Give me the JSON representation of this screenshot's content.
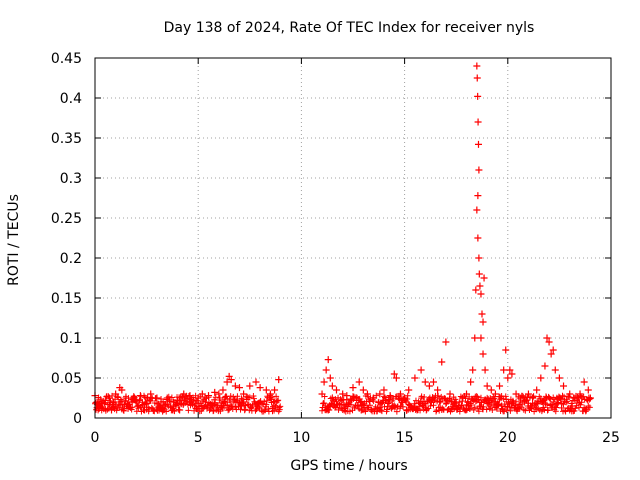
{
  "chart_data": {
    "type": "scatter",
    "title": "Day 138 of 2024, Rate Of TEC Index for receiver nyls",
    "xlabel": "GPS time / hours",
    "ylabel": "ROTI / TECUs",
    "xlim": [
      0,
      25
    ],
    "ylim": [
      0,
      0.45
    ],
    "xticks": [
      0,
      5,
      10,
      15,
      20,
      25
    ],
    "xtick_labels": [
      "0",
      "5",
      "10",
      "15",
      "20",
      "25"
    ],
    "yticks": [
      0,
      0.05,
      0.1,
      0.15,
      0.2,
      0.25,
      0.3,
      0.35,
      0.4,
      0.45
    ],
    "ytick_labels": [
      "0",
      "0.05",
      "0.1",
      "0.15",
      "0.2",
      "0.25",
      "0.3",
      "0.35",
      "0.4",
      "0.45"
    ],
    "grid": true,
    "marker": "+",
    "color": "#ff0000",
    "series": [
      {
        "name": "ROTI",
        "points": [
          [
            0.0,
            0.028
          ],
          [
            0.1,
            0.02
          ],
          [
            0.2,
            0.015
          ],
          [
            0.3,
            0.018
          ],
          [
            0.5,
            0.022
          ],
          [
            0.7,
            0.025
          ],
          [
            0.9,
            0.02
          ],
          [
            1.0,
            0.03
          ],
          [
            1.2,
            0.038
          ],
          [
            1.3,
            0.035
          ],
          [
            1.5,
            0.025
          ],
          [
            1.8,
            0.02
          ],
          [
            2.0,
            0.022
          ],
          [
            2.2,
            0.028
          ],
          [
            2.5,
            0.018
          ],
          [
            2.7,
            0.03
          ],
          [
            3.0,
            0.025
          ],
          [
            3.2,
            0.02
          ],
          [
            3.5,
            0.025
          ],
          [
            3.8,
            0.02
          ],
          [
            4.0,
            0.022
          ],
          [
            4.3,
            0.03
          ],
          [
            4.6,
            0.028
          ],
          [
            5.0,
            0.025
          ],
          [
            5.2,
            0.03
          ],
          [
            5.5,
            0.028
          ],
          [
            5.8,
            0.032
          ],
          [
            6.0,
            0.03
          ],
          [
            6.2,
            0.035
          ],
          [
            6.4,
            0.045
          ],
          [
            6.5,
            0.052
          ],
          [
            6.6,
            0.048
          ],
          [
            6.8,
            0.04
          ],
          [
            7.0,
            0.038
          ],
          [
            7.2,
            0.03
          ],
          [
            7.5,
            0.04
          ],
          [
            7.8,
            0.045
          ],
          [
            8.0,
            0.038
          ],
          [
            8.3,
            0.035
          ],
          [
            8.5,
            0.03
          ],
          [
            8.7,
            0.035
          ],
          [
            8.9,
            0.048
          ],
          [
            0.2,
            0.012
          ],
          [
            0.8,
            0.01
          ],
          [
            1.6,
            0.012
          ],
          [
            2.4,
            0.01
          ],
          [
            3.3,
            0.012
          ],
          [
            4.1,
            0.01
          ],
          [
            4.9,
            0.012
          ],
          [
            5.7,
            0.015
          ],
          [
            6.3,
            0.02
          ],
          [
            7.1,
            0.015
          ],
          [
            7.9,
            0.018
          ],
          [
            8.6,
            0.012
          ],
          [
            11.0,
            0.03
          ],
          [
            11.1,
            0.045
          ],
          [
            11.2,
            0.06
          ],
          [
            11.3,
            0.073
          ],
          [
            11.4,
            0.05
          ],
          [
            11.5,
            0.04
          ],
          [
            11.7,
            0.035
          ],
          [
            12.0,
            0.03
          ],
          [
            12.2,
            0.028
          ],
          [
            12.5,
            0.038
          ],
          [
            12.8,
            0.045
          ],
          [
            13.0,
            0.035
          ],
          [
            13.2,
            0.03
          ],
          [
            13.5,
            0.025
          ],
          [
            13.8,
            0.03
          ],
          [
            14.0,
            0.035
          ],
          [
            14.3,
            0.028
          ],
          [
            14.5,
            0.055
          ],
          [
            14.6,
            0.05
          ],
          [
            14.8,
            0.03
          ],
          [
            15.0,
            0.025
          ],
          [
            15.2,
            0.035
          ],
          [
            15.5,
            0.05
          ],
          [
            15.8,
            0.06
          ],
          [
            16.0,
            0.045
          ],
          [
            16.2,
            0.04
          ],
          [
            16.4,
            0.045
          ],
          [
            16.6,
            0.035
          ],
          [
            16.8,
            0.07
          ],
          [
            17.0,
            0.095
          ],
          [
            17.2,
            0.03
          ],
          [
            17.5,
            0.02
          ],
          [
            17.8,
            0.025
          ],
          [
            18.0,
            0.03
          ],
          [
            18.2,
            0.045
          ],
          [
            18.3,
            0.06
          ],
          [
            18.4,
            0.1
          ],
          [
            18.45,
            0.16
          ],
          [
            18.5,
            0.44
          ],
          [
            18.52,
            0.425
          ],
          [
            18.54,
            0.402
          ],
          [
            18.56,
            0.37
          ],
          [
            18.58,
            0.342
          ],
          [
            18.6,
            0.31
          ],
          [
            18.55,
            0.278
          ],
          [
            18.5,
            0.26
          ],
          [
            18.55,
            0.225
          ],
          [
            18.6,
            0.2
          ],
          [
            18.62,
            0.18
          ],
          [
            18.65,
            0.165
          ],
          [
            18.7,
            0.155
          ],
          [
            18.75,
            0.13
          ],
          [
            18.8,
            0.12
          ],
          [
            18.7,
            0.1
          ],
          [
            18.8,
            0.08
          ],
          [
            18.85,
            0.175
          ],
          [
            18.9,
            0.06
          ],
          [
            19.0,
            0.04
          ],
          [
            19.2,
            0.035
          ],
          [
            19.4,
            0.03
          ],
          [
            19.6,
            0.04
          ],
          [
            19.8,
            0.06
          ],
          [
            19.9,
            0.085
          ],
          [
            20.0,
            0.05
          ],
          [
            20.1,
            0.06
          ],
          [
            20.2,
            0.055
          ],
          [
            20.4,
            0.03
          ],
          [
            20.6,
            0.025
          ],
          [
            20.8,
            0.02
          ],
          [
            21.0,
            0.03
          ],
          [
            21.2,
            0.025
          ],
          [
            21.4,
            0.035
          ],
          [
            21.6,
            0.05
          ],
          [
            21.8,
            0.065
          ],
          [
            21.9,
            0.1
          ],
          [
            22.0,
            0.095
          ],
          [
            22.1,
            0.08
          ],
          [
            22.2,
            0.085
          ],
          [
            22.3,
            0.06
          ],
          [
            22.5,
            0.05
          ],
          [
            22.7,
            0.04
          ],
          [
            23.0,
            0.03
          ],
          [
            23.2,
            0.025
          ],
          [
            23.5,
            0.03
          ],
          [
            23.7,
            0.045
          ],
          [
            23.9,
            0.035
          ],
          [
            24.0,
            0.025
          ],
          [
            11.3,
            0.01
          ],
          [
            12.1,
            0.012
          ],
          [
            12.9,
            0.01
          ],
          [
            13.7,
            0.012
          ],
          [
            14.4,
            0.015
          ],
          [
            15.1,
            0.01
          ],
          [
            15.9,
            0.015
          ],
          [
            16.7,
            0.02
          ],
          [
            17.4,
            0.012
          ],
          [
            18.1,
            0.015
          ],
          [
            19.1,
            0.02
          ],
          [
            19.7,
            0.015
          ],
          [
            20.5,
            0.012
          ],
          [
            21.1,
            0.015
          ],
          [
            21.7,
            0.02
          ],
          [
            22.4,
            0.018
          ],
          [
            23.1,
            0.012
          ],
          [
            23.8,
            0.01
          ]
        ]
      }
    ]
  }
}
